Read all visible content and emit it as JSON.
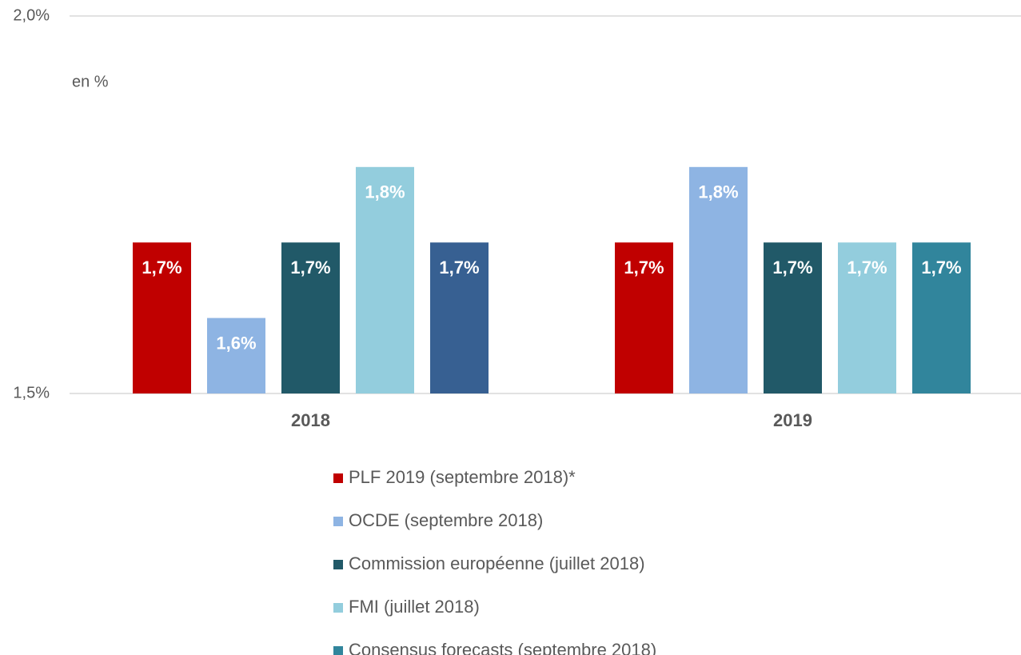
{
  "chart_data": {
    "type": "bar",
    "annotation": "en %",
    "categories": [
      "2018",
      "2019"
    ],
    "series": [
      {
        "name": "PLF 2019 (septembre 2018)*",
        "color": "#c00000",
        "values": [
          1.7,
          1.7
        ],
        "value_labels": [
          "1,7%",
          "1,7%"
        ]
      },
      {
        "name": "OCDE (septembre  2018)",
        "color": "#8eb4e3",
        "values": [
          1.6,
          1.8
        ],
        "value_labels": [
          "1,6%",
          "1,8%"
        ]
      },
      {
        "name": "Commission européenne (juillet 2018)",
        "color": "#215968",
        "values": [
          1.7,
          1.7
        ],
        "value_labels": [
          "1,7%",
          "1,7%"
        ]
      },
      {
        "name": "FMI (juillet 2018)",
        "color": "#93cddd",
        "values": [
          1.8,
          1.7
        ],
        "value_labels": [
          "1,8%",
          "1,7%"
        ]
      },
      {
        "name": "Consensus forecasts (septembre 2018)",
        "color": "#31859c",
        "colors": [
          "#376092",
          "#31859c"
        ],
        "values": [
          1.7,
          1.7
        ],
        "value_labels": [
          "1,7%",
          "1,7%"
        ]
      }
    ],
    "ylim": [
      1.5,
      2.0
    ],
    "yticks": [
      {
        "value": 1.5,
        "label": "1,5%"
      },
      {
        "value": 2.0,
        "label": "2,0%"
      }
    ],
    "grid": true,
    "legend": "bottom"
  }
}
